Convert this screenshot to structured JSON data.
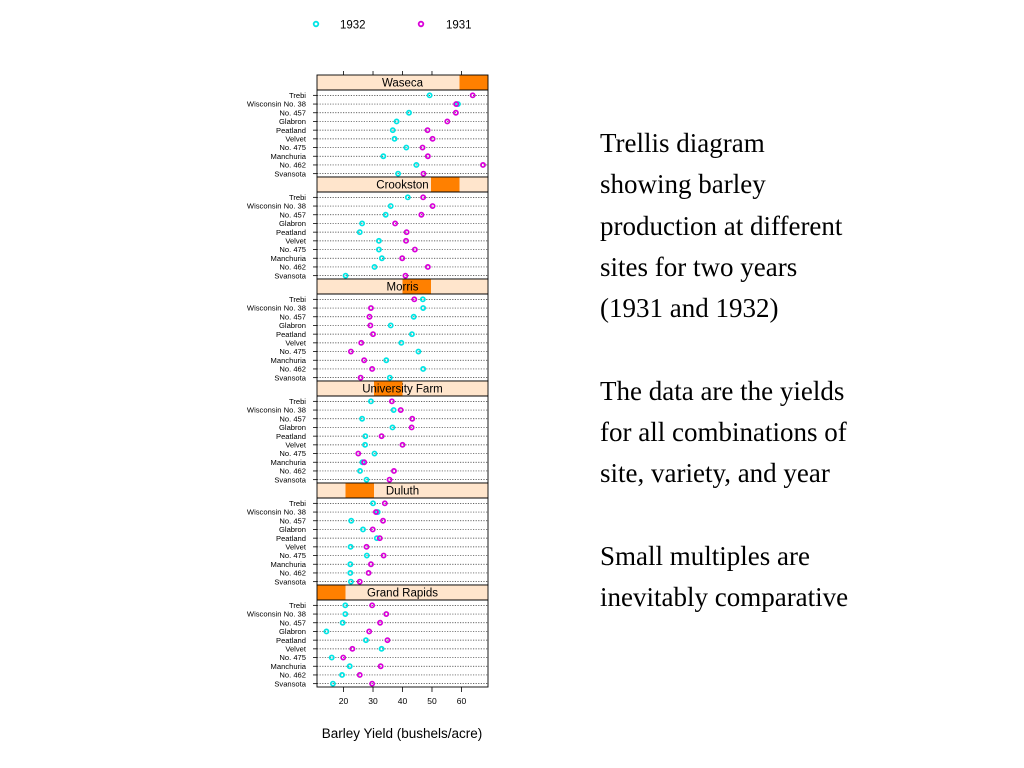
{
  "slide": {
    "paragraphs": [
      "Trellis diagram\nshowing barley\nproduction at different\nsites for two years\n(1931 and 1932)",
      "The data are the yields\nfor all combinations of\nsite, variety, and year",
      "Small multiples are\ninevitably comparative"
    ]
  },
  "chart_data": {
    "type": "scatter",
    "subtype": "trellis dot plot",
    "xlabel": "Barley Yield (bushels/acre)",
    "xlim": [
      11,
      69
    ],
    "xticks": [
      20,
      30,
      40,
      50,
      60
    ],
    "grid": "dotted row lines",
    "legend_position": "top",
    "legend": [
      {
        "name": "1932",
        "color": "#00e5e5"
      },
      {
        "name": "1931",
        "color": "#d900d9"
      }
    ],
    "varieties": [
      "Trebi",
      "Wisconsin No. 38",
      "No. 457",
      "Glabron",
      "Peatland",
      "Velvet",
      "No. 475",
      "Manchuria",
      "No. 462",
      "Svansota"
    ],
    "strip_color": "#ff8000",
    "strip_bg": "#ffe5cc",
    "panels": [
      {
        "site": "Waseca",
        "y1932": [
          49.2,
          58.8,
          42.2,
          38.0,
          36.7,
          37.3,
          41.3,
          33.5,
          44.7,
          38.5
        ],
        "y1931": [
          63.8,
          58.2,
          58.1,
          55.2,
          48.5,
          50.2,
          46.8,
          48.6,
          67.3,
          47.1
        ]
      },
      {
        "site": "Crookston",
        "y1932": [
          41.8,
          36.0,
          34.3,
          26.3,
          25.5,
          32.0,
          32.0,
          33.0,
          30.5,
          20.7
        ],
        "y1931": [
          47.0,
          50.2,
          46.4,
          37.5,
          41.4,
          41.2,
          44.2,
          39.9,
          48.6,
          41.0
        ]
      },
      {
        "site": "Morris",
        "y1932": [
          46.9,
          47.0,
          43.8,
          36.0,
          43.2,
          39.6,
          45.4,
          34.5,
          47.0,
          35.7
        ],
        "y1931": [
          44.0,
          29.3,
          28.8,
          29.1,
          30.0,
          26.0,
          22.5,
          27.0,
          29.7,
          25.8
        ]
      },
      {
        "site": "University Farm",
        "y1932": [
          29.3,
          37.0,
          26.3,
          36.6,
          27.4,
          27.3,
          30.5,
          26.4,
          25.6,
          27.8
        ],
        "y1931": [
          36.4,
          39.4,
          43.3,
          43.1,
          32.9,
          40.0,
          25.0,
          27.0,
          37.1,
          35.6
        ]
      },
      {
        "site": "Duluth",
        "y1932": [
          30.0,
          31.6,
          22.6,
          26.6,
          31.3,
          22.4,
          27.9,
          22.3,
          22.3,
          22.5
        ],
        "y1931": [
          34.0,
          31.0,
          33.4,
          29.9,
          32.3,
          27.8,
          33.6,
          29.3,
          28.5,
          25.5
        ]
      },
      {
        "site": "Grand Rapids",
        "y1932": [
          20.6,
          20.6,
          19.7,
          14.2,
          27.6,
          32.9,
          16.0,
          22.1,
          19.5,
          16.4
        ],
        "y1931": [
          29.7,
          34.5,
          32.4,
          28.7,
          34.9,
          23.0,
          19.9,
          32.6,
          25.5,
          29.7
        ]
      }
    ]
  }
}
